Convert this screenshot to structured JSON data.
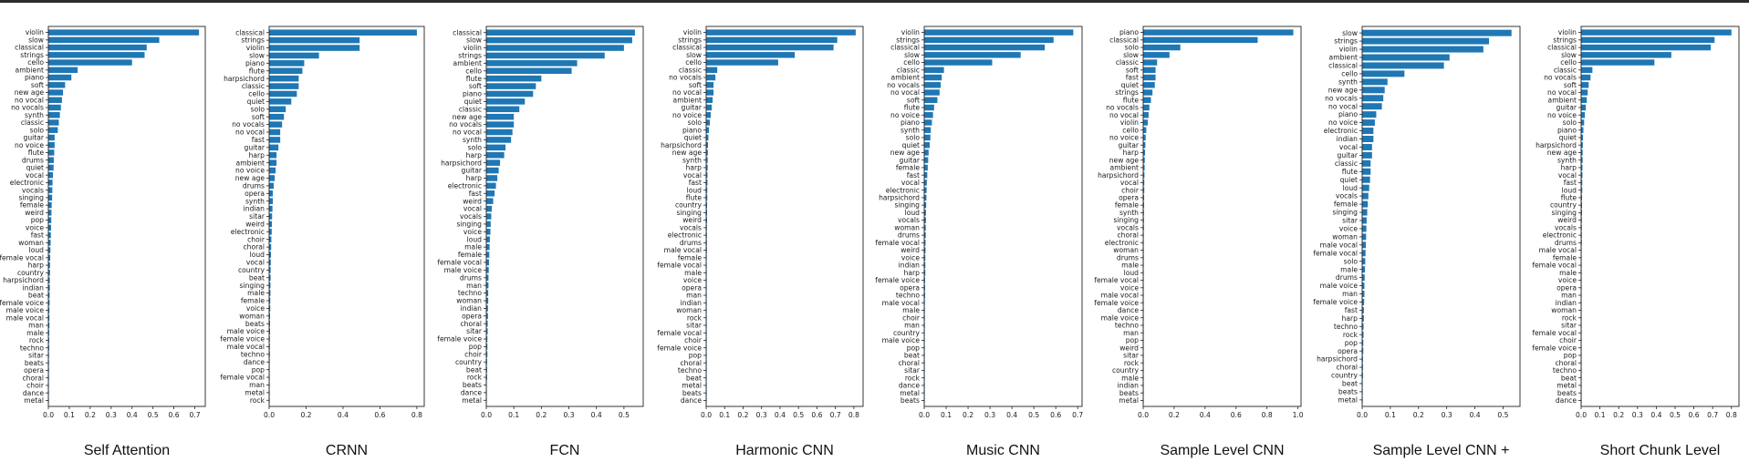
{
  "chart_data": [
    {
      "type": "bar",
      "orientation": "horizontal",
      "title": "Self Attention",
      "xlim": [
        0,
        0.75
      ],
      "xticks": [
        "0.0",
        "0.1",
        "0.2",
        "0.3",
        "0.4",
        "0.5",
        "0.6",
        "0.7"
      ],
      "bar_color": "#1f77b4",
      "categories": [
        "violin",
        "slow",
        "classical",
        "strings",
        "cello",
        "ambient",
        "piano",
        "soft",
        "new age",
        "no vocal",
        "no vocals",
        "synth",
        "classic",
        "solo",
        "guitar",
        "no voice",
        "flute",
        "drums",
        "quiet",
        "vocal",
        "electronic",
        "vocals",
        "singing",
        "female",
        "weird",
        "pop",
        "voice",
        "fast",
        "woman",
        "loud",
        "female vocal",
        "harp",
        "country",
        "harpsichord",
        "indian",
        "beat",
        "female voice",
        "male voice",
        "male vocal",
        "man",
        "male",
        "rock",
        "techno",
        "sitar",
        "beats",
        "opera",
        "choral",
        "choir",
        "dance",
        "metal"
      ],
      "values": [
        0.72,
        0.53,
        0.47,
        0.46,
        0.4,
        0.14,
        0.11,
        0.08,
        0.07,
        0.065,
        0.06,
        0.055,
        0.05,
        0.045,
        0.03,
        0.03,
        0.028,
        0.026,
        0.025,
        0.022,
        0.02,
        0.019,
        0.018,
        0.016,
        0.015,
        0.014,
        0.013,
        0.012,
        0.011,
        0.01,
        0.009,
        0.008,
        0.008,
        0.007,
        0.007,
        0.006,
        0.006,
        0.005,
        0.005,
        0.005,
        0.004,
        0.004,
        0.004,
        0.003,
        0.003,
        0.003,
        0.003,
        0.002,
        0.002,
        0.002
      ]
    },
    {
      "type": "bar",
      "orientation": "horizontal",
      "title": "CRNN",
      "xlim": [
        0,
        0.84
      ],
      "xticks": [
        "0.0",
        "0.2",
        "0.4",
        "0.6",
        "0.8"
      ],
      "bar_color": "#1f77b4",
      "categories": [
        "classical",
        "strings",
        "violin",
        "slow",
        "piano",
        "flute",
        "harpsichord",
        "classic",
        "cello",
        "quiet",
        "solo",
        "soft",
        "no vocals",
        "no vocal",
        "fast",
        "guitar",
        "harp",
        "ambient",
        "no voice",
        "new age",
        "drums",
        "opera",
        "synth",
        "indian",
        "sitar",
        "weird",
        "electronic",
        "choir",
        "choral",
        "loud",
        "vocal",
        "country",
        "beat",
        "singing",
        "male",
        "female",
        "voice",
        "woman",
        "beats",
        "male voice",
        "female voice",
        "male vocal",
        "techno",
        "dance",
        "pop",
        "female vocal",
        "man",
        "metal",
        "rock"
      ],
      "values": [
        0.8,
        0.49,
        0.49,
        0.27,
        0.19,
        0.18,
        0.16,
        0.16,
        0.15,
        0.12,
        0.09,
        0.08,
        0.07,
        0.06,
        0.06,
        0.05,
        0.04,
        0.04,
        0.035,
        0.03,
        0.025,
        0.02,
        0.02,
        0.018,
        0.016,
        0.015,
        0.014,
        0.012,
        0.011,
        0.01,
        0.009,
        0.008,
        0.008,
        0.007,
        0.007,
        0.006,
        0.006,
        0.005,
        0.005,
        0.005,
        0.004,
        0.004,
        0.004,
        0.003,
        0.003,
        0.003,
        0.003,
        0.002,
        0.002
      ]
    },
    {
      "type": "bar",
      "orientation": "horizontal",
      "title": "FCN",
      "xlim": [
        0,
        0.57
      ],
      "xticks": [
        "0.0",
        "0.1",
        "0.2",
        "0.3",
        "0.4",
        "0.5"
      ],
      "bar_color": "#1f77b4",
      "categories": [
        "classical",
        "slow",
        "violin",
        "strings",
        "ambient",
        "cello",
        "flute",
        "soft",
        "piano",
        "quiet",
        "classic",
        "new age",
        "no vocals",
        "no vocal",
        "synth",
        "solo",
        "harp",
        "harpsichord",
        "guitar",
        "harp",
        "electronic",
        "fast",
        "weird",
        "vocal",
        "vocals",
        "singing",
        "voice",
        "loud",
        "male",
        "female",
        "female vocal",
        "male voice",
        "drums",
        "man",
        "techno",
        "woman",
        "indian",
        "opera",
        "choral",
        "sitar",
        "female voice",
        "pop",
        "choir",
        "country",
        "beat",
        "rock",
        "beats",
        "dance",
        "metal"
      ],
      "values": [
        0.54,
        0.53,
        0.5,
        0.43,
        0.33,
        0.31,
        0.2,
        0.18,
        0.17,
        0.14,
        0.12,
        0.1,
        0.1,
        0.095,
        0.09,
        0.07,
        0.065,
        0.05,
        0.045,
        0.04,
        0.035,
        0.03,
        0.025,
        0.02,
        0.018,
        0.016,
        0.015,
        0.013,
        0.012,
        0.011,
        0.01,
        0.009,
        0.008,
        0.008,
        0.007,
        0.007,
        0.006,
        0.006,
        0.005,
        0.005,
        0.004,
        0.004,
        0.004,
        0.003,
        0.003,
        0.003,
        0.002,
        0.002,
        0.002
      ]
    },
    {
      "type": "bar",
      "orientation": "horizontal",
      "title": "Harmonic CNN",
      "xlim": [
        0,
        0.85
      ],
      "xticks": [
        "0.0",
        "0.1",
        "0.2",
        "0.3",
        "0.4",
        "0.5",
        "0.6",
        "0.7",
        "0.8"
      ],
      "bar_color": "#1f77b4",
      "categories": [
        "violin",
        "strings",
        "classical",
        "slow",
        "cello",
        "classic",
        "no vocals",
        "soft",
        "no vocal",
        "ambient",
        "guitar",
        "no voice",
        "solo",
        "piano",
        "quiet",
        "harpsichord",
        "new age",
        "synth",
        "harp",
        "vocal",
        "fast",
        "loud",
        "flute",
        "country",
        "singing",
        "weird",
        "vocals",
        "electronic",
        "drums",
        "male vocal",
        "female",
        "female vocal",
        "male",
        "voice",
        "opera",
        "man",
        "indian",
        "woman",
        "rock",
        "sitar",
        "female vocal",
        "choir",
        "female voice",
        "pop",
        "choral",
        "techno",
        "beat",
        "metal",
        "beats",
        "dance"
      ],
      "values": [
        0.81,
        0.71,
        0.69,
        0.48,
        0.39,
        0.06,
        0.05,
        0.04,
        0.04,
        0.035,
        0.03,
        0.025,
        0.02,
        0.015,
        0.012,
        0.01,
        0.009,
        0.008,
        0.008,
        0.007,
        0.007,
        0.006,
        0.006,
        0.005,
        0.005,
        0.005,
        0.004,
        0.004,
        0.004,
        0.004,
        0.003,
        0.003,
        0.003,
        0.003,
        0.003,
        0.002,
        0.002,
        0.002,
        0.002,
        0.002,
        0.002,
        0.002,
        0.002,
        0.001,
        0.001,
        0.001,
        0.001,
        0.001,
        0.001,
        0.001
      ]
    },
    {
      "type": "bar",
      "orientation": "horizontal",
      "title": "Music CNN",
      "xlim": [
        0,
        0.72
      ],
      "xticks": [
        "0.0",
        "0.1",
        "0.2",
        "0.3",
        "0.4",
        "0.5",
        "0.6",
        "0.7"
      ],
      "bar_color": "#1f77b4",
      "categories": [
        "violin",
        "strings",
        "classical",
        "slow",
        "cello",
        "classic",
        "ambient",
        "no vocals",
        "no vocal",
        "soft",
        "flute",
        "no voice",
        "piano",
        "synth",
        "solo",
        "quiet",
        "new age",
        "guitar",
        "female",
        "fast",
        "vocal",
        "electronic",
        "harpsichord",
        "singing",
        "loud",
        "vocals",
        "woman",
        "drums",
        "female vocal",
        "weird",
        "voice",
        "indian",
        "harp",
        "female voice",
        "opera",
        "techno",
        "male vocal",
        "male",
        "choir",
        "man",
        "country",
        "male voice",
        "pop",
        "beat",
        "choral",
        "sitar",
        "rock",
        "dance",
        "metal",
        "beats"
      ],
      "values": [
        0.68,
        0.59,
        0.55,
        0.44,
        0.31,
        0.09,
        0.08,
        0.075,
        0.07,
        0.06,
        0.045,
        0.04,
        0.035,
        0.03,
        0.028,
        0.025,
        0.02,
        0.018,
        0.016,
        0.014,
        0.012,
        0.011,
        0.01,
        0.009,
        0.008,
        0.008,
        0.007,
        0.007,
        0.006,
        0.006,
        0.005,
        0.005,
        0.005,
        0.004,
        0.004,
        0.004,
        0.003,
        0.003,
        0.003,
        0.003,
        0.002,
        0.002,
        0.002,
        0.002,
        0.002,
        0.002,
        0.002,
        0.001,
        0.001,
        0.001
      ]
    },
    {
      "type": "bar",
      "orientation": "horizontal",
      "title": "Sample Level CNN",
      "xlim": [
        0,
        1.02
      ],
      "xticks": [
        "0.0",
        "0.2",
        "0.4",
        "0.6",
        "0.8",
        "1.0"
      ],
      "bar_color": "#1f77b4",
      "categories": [
        "piano",
        "classical",
        "solo",
        "slow",
        "classic",
        "soft",
        "fast",
        "quiet",
        "strings",
        "flute",
        "no vocals",
        "no vocal",
        "violin",
        "cello",
        "no voice",
        "guitar",
        "harp",
        "new age",
        "ambient",
        "harpsichord",
        "vocal",
        "choir",
        "opera",
        "female",
        "synth",
        "singing",
        "vocals",
        "choral",
        "electronic",
        "woman",
        "drums",
        "male",
        "loud",
        "female vocal",
        "voice",
        "male vocal",
        "female voice",
        "dance",
        "male voice",
        "techno",
        "man",
        "pop",
        "weird",
        "sitar",
        "rock",
        "country",
        "male",
        "indian",
        "beats",
        "metal"
      ],
      "values": [
        0.97,
        0.74,
        0.24,
        0.17,
        0.09,
        0.08,
        0.08,
        0.075,
        0.06,
        0.05,
        0.04,
        0.035,
        0.03,
        0.02,
        0.016,
        0.014,
        0.012,
        0.01,
        0.009,
        0.008,
        0.007,
        0.007,
        0.006,
        0.006,
        0.005,
        0.005,
        0.005,
        0.004,
        0.004,
        0.004,
        0.004,
        0.003,
        0.003,
        0.003,
        0.003,
        0.003,
        0.002,
        0.002,
        0.002,
        0.002,
        0.002,
        0.002,
        0.002,
        0.002,
        0.001,
        0.001,
        0.001,
        0.001,
        0.001,
        0.001
      ]
    },
    {
      "type": "bar",
      "orientation": "horizontal",
      "title": "Sample Level CNN +",
      "xlim": [
        0,
        0.56
      ],
      "xticks": [
        "0.0",
        "0.1",
        "0.2",
        "0.3",
        "0.4",
        "0.5"
      ],
      "bar_color": "#1f77b4",
      "categories": [
        "slow",
        "strings",
        "violin",
        "ambient",
        "classical",
        "cello",
        "synth",
        "new age",
        "no vocals",
        "no vocal",
        "piano",
        "no voice",
        "electronic",
        "indian",
        "vocal",
        "guitar",
        "classic",
        "flute",
        "quiet",
        "loud",
        "vocals",
        "female",
        "singing",
        "sitar",
        "voice",
        "woman",
        "male vocal",
        "female vocal",
        "solo",
        "male",
        "drums",
        "male voice",
        "man",
        "female voice",
        "fast",
        "harp",
        "techno",
        "rock",
        "pop",
        "opera",
        "harpsichord",
        "choral",
        "country",
        "beat",
        "beats",
        "metal"
      ],
      "values": [
        0.53,
        0.45,
        0.43,
        0.31,
        0.29,
        0.15,
        0.09,
        0.08,
        0.075,
        0.07,
        0.05,
        0.045,
        0.04,
        0.04,
        0.035,
        0.035,
        0.03,
        0.03,
        0.028,
        0.025,
        0.022,
        0.02,
        0.018,
        0.016,
        0.015,
        0.014,
        0.013,
        0.012,
        0.011,
        0.01,
        0.009,
        0.008,
        0.008,
        0.007,
        0.006,
        0.006,
        0.005,
        0.005,
        0.004,
        0.004,
        0.003,
        0.003,
        0.003,
        0.002,
        0.002,
        0.002
      ]
    },
    {
      "type": "bar",
      "orientation": "horizontal",
      "title": "Short Chunk Level",
      "xlim": [
        0,
        0.84
      ],
      "xticks": [
        "0.0",
        "0.1",
        "0.2",
        "0.3",
        "0.4",
        "0.5",
        "0.6",
        "0.7",
        "0.8"
      ],
      "bar_color": "#1f77b4",
      "categories": [
        "violin",
        "strings",
        "classical",
        "slow",
        "cello",
        "classic",
        "no vocals",
        "soft",
        "no vocal",
        "ambient",
        "guitar",
        "no voice",
        "solo",
        "piano",
        "quiet",
        "harpsichord",
        "new age",
        "synth",
        "harp",
        "vocal",
        "fast",
        "loud",
        "flute",
        "country",
        "singing",
        "weird",
        "vocals",
        "electronic",
        "drums",
        "male vocal",
        "female",
        "female vocal",
        "male",
        "voice",
        "opera",
        "man",
        "indian",
        "woman",
        "rock",
        "sitar",
        "female vocal",
        "choir",
        "female voice",
        "pop",
        "choral",
        "techno",
        "beat",
        "metal",
        "beats",
        "dance"
      ],
      "values": [
        0.8,
        0.71,
        0.69,
        0.48,
        0.39,
        0.06,
        0.05,
        0.04,
        0.035,
        0.03,
        0.025,
        0.02,
        0.016,
        0.012,
        0.01,
        0.009,
        0.008,
        0.008,
        0.007,
        0.007,
        0.006,
        0.006,
        0.005,
        0.005,
        0.005,
        0.004,
        0.004,
        0.004,
        0.004,
        0.003,
        0.003,
        0.003,
        0.003,
        0.003,
        0.002,
        0.002,
        0.002,
        0.002,
        0.002,
        0.002,
        0.002,
        0.002,
        0.001,
        0.001,
        0.001,
        0.001,
        0.001,
        0.001,
        0.001,
        0.001
      ]
    }
  ]
}
